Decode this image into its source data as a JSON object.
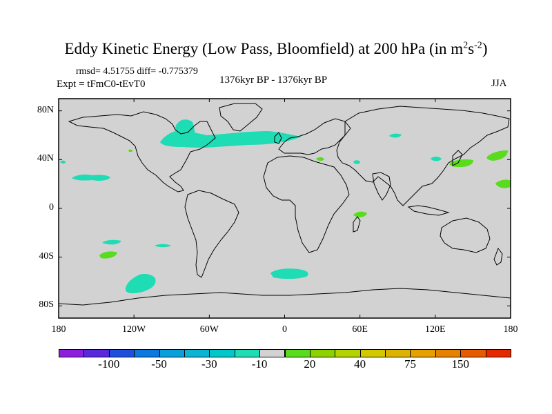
{
  "title": {
    "main": "Eddy Kinetic Energy (Low Pass, Bloomfield) at 200 hPa (in m",
    "sup1": "2",
    "mid": "s",
    "sup2": "-2",
    "end": ")"
  },
  "stats": "rmsd= 4.51755 diff= -0.775379",
  "experiment": "Expt = tFmC0-tEvT0",
  "period": "1376kyr BP - 1376kyr BP",
  "season": "JJA",
  "axes": {
    "lon_labels": [
      "180",
      "120W",
      "60W",
      "0",
      "60E",
      "120E",
      "180"
    ],
    "lon_values": [
      -180,
      -120,
      -60,
      0,
      60,
      120,
      180
    ],
    "lat_labels": [
      "80N",
      "40N",
      "0",
      "40S",
      "80S"
    ],
    "lat_values": [
      80,
      40,
      0,
      -40,
      -80
    ],
    "lon_range": [
      -180,
      180
    ],
    "lat_range": [
      -90,
      90
    ]
  },
  "colorbar": {
    "colors": [
      "#8c1edc",
      "#5a28dc",
      "#1e50dc",
      "#0a78dc",
      "#0aa0dc",
      "#0ab4d2",
      "#00c8c8",
      "#1edcb4",
      "#d2d2d2",
      "#5adc1e",
      "#8cd200",
      "#b4d200",
      "#d2c800",
      "#dcb400",
      "#e6a000",
      "#e68200",
      "#e65a00",
      "#e62800"
    ],
    "labels": [
      "-100",
      "-50",
      "-30",
      "-10",
      "20",
      "40",
      "75",
      "150"
    ],
    "label_after_box": [
      2,
      4,
      6,
      8,
      10,
      12,
      14,
      16
    ]
  },
  "background_color": "#d2d2d2",
  "anomalies": [
    {
      "name": "north-america-atlantic-band",
      "color": "#1edcb4"
    },
    {
      "name": "hudson-bay-core",
      "color": "#1edcb4"
    },
    {
      "name": "north-pacific-east",
      "color": "#1edcb4"
    },
    {
      "name": "pacific-west",
      "color": "#1edcb4"
    },
    {
      "name": "ural-patch",
      "color": "#1edcb4"
    },
    {
      "name": "japan-patch",
      "color": "#1edcb4"
    },
    {
      "name": "south-pacific-1",
      "color": "#1edcb4"
    },
    {
      "name": "south-pacific-2",
      "color": "#1edcb4"
    },
    {
      "name": "south-atlantic",
      "color": "#1edcb4"
    },
    {
      "name": "southern-ocean-blob",
      "color": "#1edcb4"
    },
    {
      "name": "east-asia-green",
      "color": "#5adc1e"
    },
    {
      "name": "north-pacific-green",
      "color": "#5adc1e"
    },
    {
      "name": "madagascar-green",
      "color": "#5adc1e"
    },
    {
      "name": "south-pacific-green",
      "color": "#5adc1e"
    },
    {
      "name": "pacific-green-east",
      "color": "#5adc1e"
    }
  ]
}
